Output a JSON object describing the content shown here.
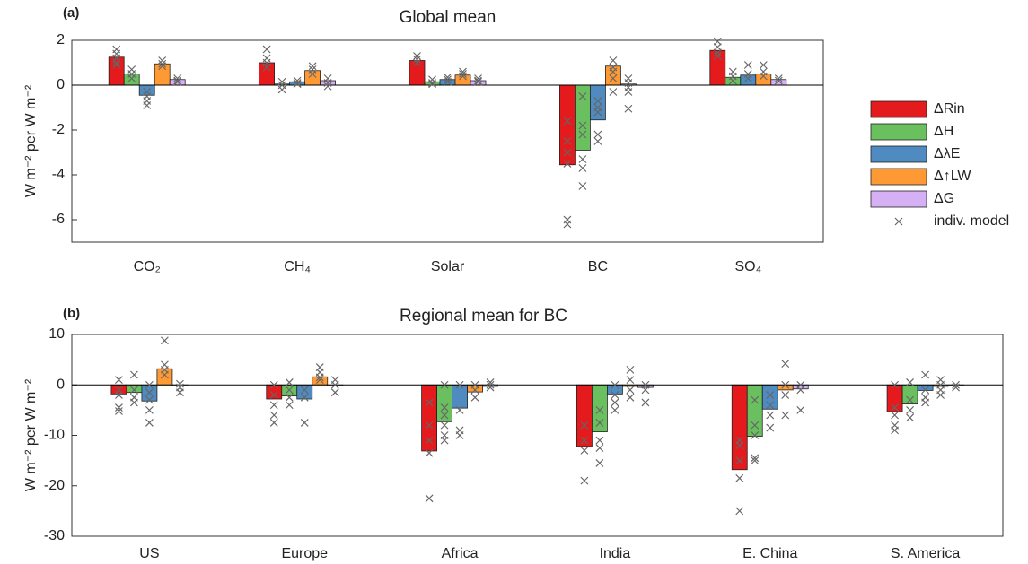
{
  "chart_data": [
    {
      "type": "bar",
      "panel_label": "(a)",
      "title": "Global mean",
      "ylabel": "W m⁻² per W m⁻²",
      "categories": [
        "CO₂",
        "CH₄",
        "Solar",
        "BC",
        "SO₄"
      ],
      "ylim": [
        -7,
        2
      ],
      "yticks": [
        2,
        0,
        -2,
        -4,
        -6
      ],
      "model_label": "indiv. model",
      "series": [
        {
          "name": "ΔRin",
          "color": "#e41a1c",
          "values": [
            1.25,
            1.0,
            1.1,
            -3.55,
            1.55
          ],
          "models": [
            [
              1.6,
              1.4,
              1.2,
              1.0,
              0.9
            ],
            [
              1.6,
              1.2,
              1.0,
              0.8
            ],
            [
              1.3,
              1.15,
              1.0
            ],
            [
              -1.6,
              -2.5,
              -3.0,
              -3.5,
              -6.0,
              -6.2
            ],
            [
              1.95,
              1.7,
              1.45,
              1.3
            ]
          ]
        },
        {
          "name": "ΔH",
          "color": "#6abf5e",
          "values": [
            0.5,
            0.05,
            0.15,
            -2.9,
            0.35
          ],
          "models": [
            [
              0.7,
              0.5,
              0.3
            ],
            [
              0.15,
              0,
              -0.2
            ],
            [
              0.25,
              0.1,
              0.05
            ],
            [
              -0.5,
              -1.8,
              -2.2,
              -3.3,
              -3.7,
              -4.5
            ],
            [
              0.6,
              0.4,
              0.2
            ]
          ]
        },
        {
          "name": "ΔλE",
          "color": "#4f8bc0",
          "values": [
            -0.45,
            0.15,
            0.25,
            -1.55,
            0.45
          ],
          "models": [
            [
              -0.3,
              -0.5,
              -0.7,
              -0.9
            ],
            [
              0.2,
              0.1,
              0.05
            ],
            [
              0.35,
              0.25,
              0.15
            ],
            [
              -0.7,
              -1.0,
              -1.2,
              -2.2,
              -2.5
            ],
            [
              0.9,
              0.5,
              0.3
            ]
          ]
        },
        {
          "name": "Δ↑LW",
          "color": "#ff9933",
          "values": [
            0.95,
            0.65,
            0.45,
            0.85,
            0.5
          ],
          "models": [
            [
              1.1,
              0.95,
              0.85
            ],
            [
              0.85,
              0.7,
              0.5
            ],
            [
              0.6,
              0.5,
              0.4
            ],
            [
              1.1,
              0.8,
              0.6,
              0.3,
              -0.3
            ],
            [
              0.9,
              0.6,
              0.4
            ]
          ]
        },
        {
          "name": "ΔG",
          "color": "#d6b0f5",
          "values": [
            0.25,
            0.2,
            0.2,
            0.05,
            0.25
          ],
          "models": [
            [
              0.3,
              0.2,
              0.15
            ],
            [
              0.3,
              0.1,
              -0.05
            ],
            [
              0.3,
              0.2,
              0.15
            ],
            [
              0.3,
              0.1,
              -0.1,
              -0.3,
              -1.05
            ],
            [
              0.3,
              0.2
            ]
          ]
        }
      ]
    },
    {
      "type": "bar",
      "panel_label": "(b)",
      "title": "Regional mean for BC",
      "ylabel": "W m⁻² per W m⁻²",
      "categories": [
        "US",
        "Europe",
        "Africa",
        "India",
        "E. China",
        "S. America"
      ],
      "ylim": [
        -30,
        10
      ],
      "yticks": [
        10,
        0,
        -10,
        -20,
        -30
      ],
      "series": [
        {
          "color": "#e41a1c",
          "values": [
            -1.8,
            -2.8,
            -13.1,
            -12.2,
            -16.8,
            -5.3
          ],
          "models": [
            [
              1,
              -1,
              -2,
              -4.5,
              -5.2
            ],
            [
              0,
              -2,
              -4,
              -6,
              -7.5
            ],
            [
              -3.5,
              -8,
              -11,
              -13.5,
              -22.5
            ],
            [
              -8,
              -11,
              -13,
              -19
            ],
            [
              -11,
              -12,
              -15,
              -18.5,
              -25
            ],
            [
              0,
              -4.5,
              -6,
              -8,
              -9
            ]
          ]
        },
        {
          "color": "#6abf5e",
          "values": [
            -1.5,
            -2.2,
            -7.3,
            -9.3,
            -10.2,
            -3.8
          ],
          "models": [
            [
              2,
              -1,
              -2.5,
              -3.5
            ],
            [
              0.5,
              -1,
              -2.5,
              -4
            ],
            [
              0,
              -4.5,
              -6,
              -8,
              -10,
              -11
            ],
            [
              -5,
              -7.5,
              -11,
              -12.5,
              -15.5
            ],
            [
              -3,
              -8,
              -10,
              -14.5,
              -15
            ],
            [
              0.5,
              -3,
              -5,
              -6.5
            ]
          ]
        },
        {
          "color": "#4f8bc0",
          "values": [
            -3.2,
            -2.8,
            -4.6,
            -1.8,
            -4.8,
            -1.1
          ],
          "models": [
            [
              0,
              -1.5,
              -3,
              -5,
              -7.5
            ],
            [
              -1,
              -2.5,
              -7.5
            ],
            [
              0,
              -5,
              -9,
              -10
            ],
            [
              0,
              -2,
              -3.5,
              -5
            ],
            [
              -2,
              -4,
              -6,
              -8.5
            ],
            [
              2,
              -1,
              -2.5,
              -3.5
            ]
          ]
        },
        {
          "color": "#ff9933",
          "values": [
            3.2,
            1.6,
            -1.4,
            -0.3,
            -1.0,
            -0.3
          ],
          "models": [
            [
              8.8,
              4,
              3,
              2
            ],
            [
              3.5,
              2.5,
              1.5,
              1
            ],
            [
              0,
              -1,
              -2.5
            ],
            [
              3,
              1,
              -1,
              -2.5
            ],
            [
              4.2,
              0,
              -2,
              -6
            ],
            [
              1,
              0,
              -1,
              -2
            ]
          ]
        },
        {
          "color": "#d6b0f5",
          "values": [
            -0.2,
            -0.2,
            -0.3,
            -0.5,
            -0.8,
            -0.2
          ],
          "models": [
            [
              0.2,
              -0.5,
              -1.5
            ],
            [
              1,
              0,
              -1.5
            ],
            [
              0.5,
              0,
              -0.5
            ],
            [
              0,
              -1,
              -3.5
            ],
            [
              0,
              -1,
              -5
            ],
            [
              0,
              -0.5
            ]
          ]
        }
      ]
    }
  ]
}
